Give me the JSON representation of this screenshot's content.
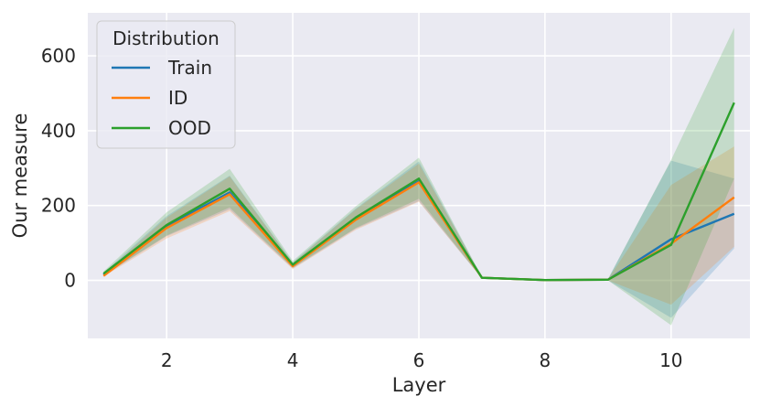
{
  "chart_data": {
    "type": "line",
    "xlabel": "Layer",
    "ylabel": "Our measure",
    "xlim": [
      0.75,
      11.25
    ],
    "ylim": [
      -155,
      715
    ],
    "xticks": [
      2,
      4,
      6,
      8,
      10
    ],
    "yticks": [
      0,
      200,
      400,
      600
    ],
    "grid": true,
    "legend": {
      "title": "Distribution",
      "position": "top-left"
    },
    "x": [
      1,
      2,
      3,
      4,
      5,
      6,
      7,
      8,
      9,
      10,
      11
    ],
    "series": [
      {
        "name": "Train",
        "color": "#1f77b4",
        "values": [
          15,
          145,
          235,
          40,
          165,
          265,
          7,
          1,
          2,
          110,
          178
        ],
        "ci_lower": [
          12,
          118,
          190,
          32,
          138,
          212,
          5,
          0,
          0,
          -100,
          85
        ],
        "ci_upper": [
          20,
          172,
          280,
          48,
          192,
          318,
          9,
          2,
          4,
          320,
          272
        ]
      },
      {
        "name": "ID",
        "color": "#ff7f0e",
        "values": [
          12,
          140,
          230,
          38,
          162,
          262,
          7,
          1,
          2,
          98,
          222
        ],
        "ci_lower": [
          10,
          112,
          185,
          30,
          135,
          210,
          5,
          0,
          0,
          -65,
          90
        ],
        "ci_upper": [
          16,
          168,
          278,
          46,
          190,
          312,
          9,
          2,
          4,
          255,
          358
        ]
      },
      {
        "name": "OOD",
        "color": "#2ca02c",
        "values": [
          18,
          148,
          245,
          42,
          168,
          272,
          7,
          1,
          2,
          95,
          475
        ],
        "ci_lower": [
          14,
          120,
          195,
          34,
          140,
          218,
          5,
          0,
          0,
          -120,
          272
        ],
        "ci_upper": [
          24,
          182,
          298,
          52,
          198,
          328,
          9,
          2,
          4,
          322,
          675
        ]
      }
    ]
  }
}
